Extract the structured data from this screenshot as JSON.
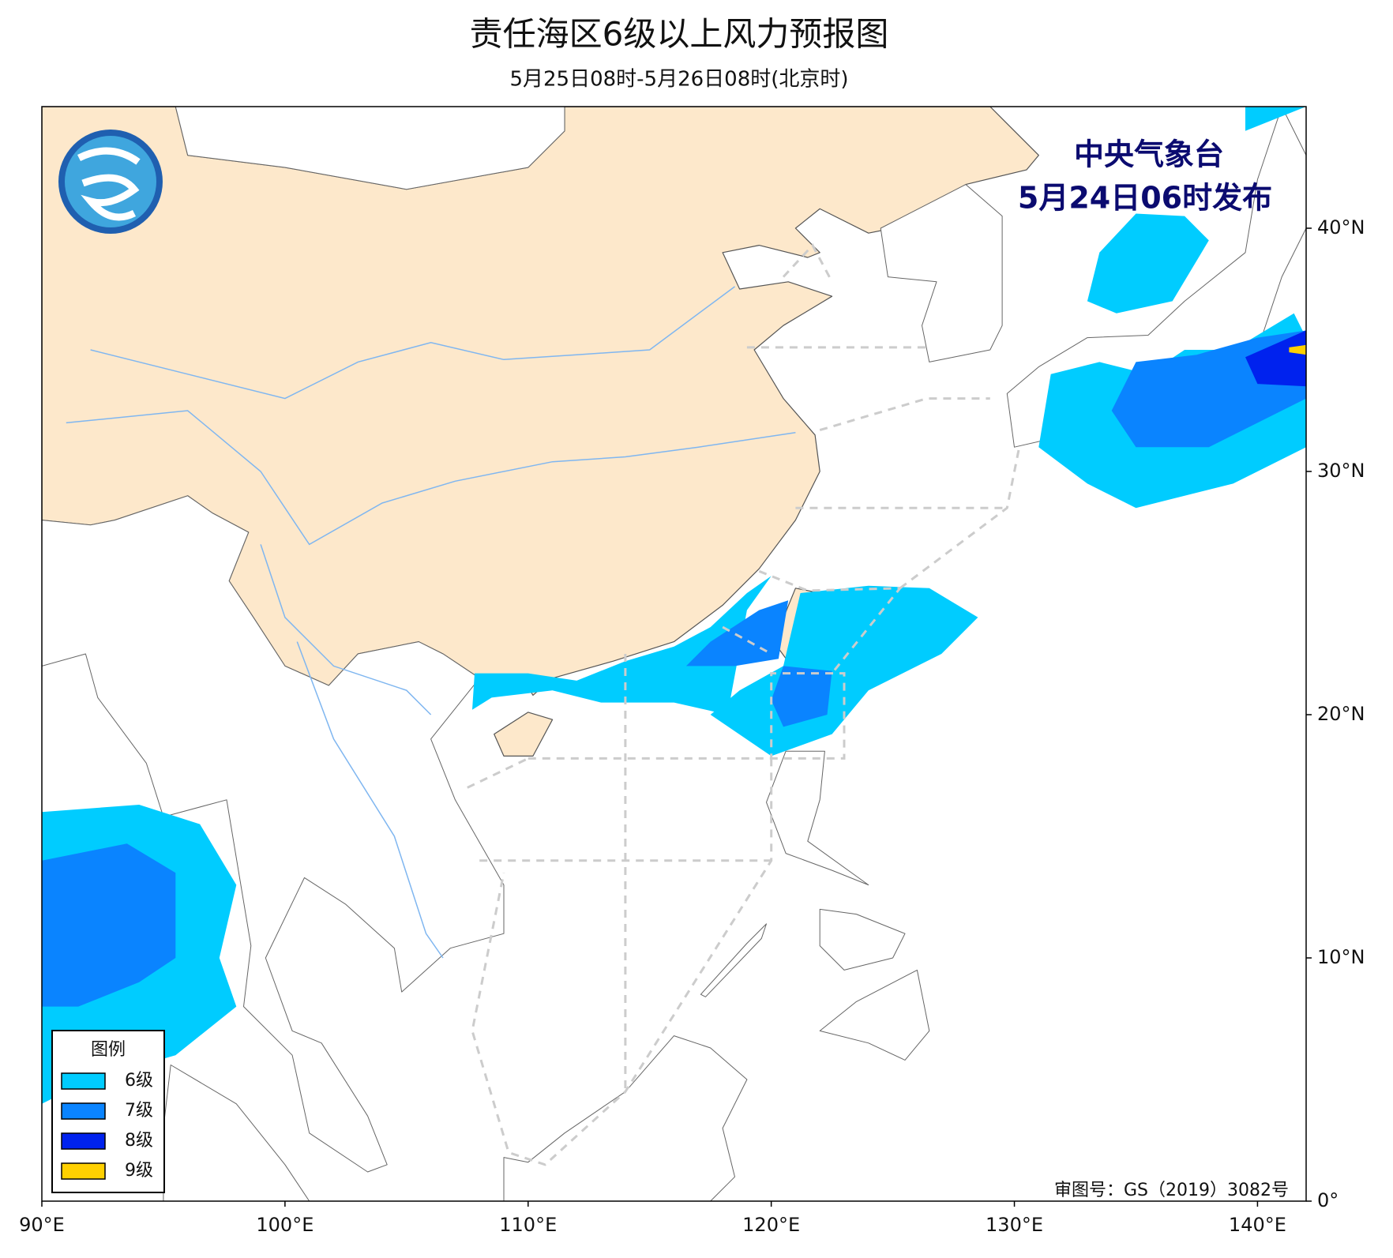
{
  "header": {
    "title": "责任海区6级以上风力预报图",
    "subtitle": "5月25日08时-5月26日08时(北京时)"
  },
  "stamp": {
    "agency": "中央气象台",
    "issued": "5月24日06时发布"
  },
  "map": {
    "lon_range": [
      90,
      142
    ],
    "lat_range": [
      0,
      45
    ],
    "lon_ticks": [
      {
        "value": 90,
        "label": "90°E"
      },
      {
        "value": 100,
        "label": "100°E"
      },
      {
        "value": 110,
        "label": "110°E"
      },
      {
        "value": 120,
        "label": "120°E"
      },
      {
        "value": 130,
        "label": "130°E"
      },
      {
        "value": 140,
        "label": "140°E"
      }
    ],
    "lat_ticks": [
      {
        "value": 0,
        "label": "0°"
      },
      {
        "value": 10,
        "label": "10°N"
      },
      {
        "value": 20,
        "label": "20°N"
      },
      {
        "value": 30,
        "label": "30°N"
      },
      {
        "value": 40,
        "label": "40°N"
      }
    ]
  },
  "legend": {
    "title": "图例",
    "items": [
      {
        "label": "6级",
        "color": "#00ccff"
      },
      {
        "label": "7级",
        "color": "#0a84ff"
      },
      {
        "label": "8级",
        "color": "#0022ee"
      },
      {
        "label": "9级",
        "color": "#ffd000"
      }
    ]
  },
  "approval": "审图号：GS（2019）3082号"
}
